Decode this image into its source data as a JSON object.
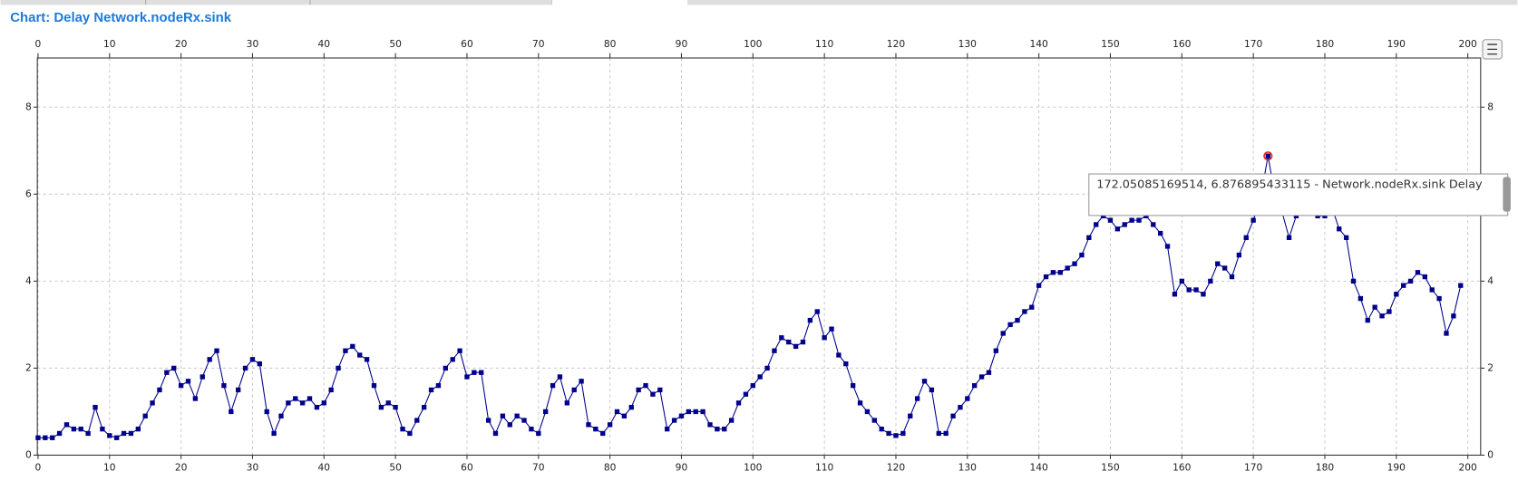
{
  "chart_data": {
    "type": "line",
    "title": "Chart: Delay Network.nodeRx.sink",
    "x": [
      0,
      1,
      2,
      3,
      4,
      5,
      6,
      7,
      8,
      9,
      10,
      11,
      12,
      13,
      14,
      15,
      16,
      17,
      18,
      19,
      20,
      21,
      22,
      23,
      24,
      25,
      26,
      27,
      28,
      29,
      30,
      31,
      32,
      33,
      34,
      35,
      36,
      37,
      38,
      39,
      40,
      41,
      42,
      43,
      44,
      45,
      46,
      47,
      48,
      49,
      50,
      51,
      52,
      53,
      54,
      55,
      56,
      57,
      58,
      59,
      60,
      61,
      62,
      63,
      64,
      65,
      66,
      67,
      68,
      69,
      70,
      71,
      72,
      73,
      74,
      75,
      76,
      77,
      78,
      79,
      80,
      81,
      82,
      83,
      84,
      85,
      86,
      87,
      88,
      89,
      90,
      91,
      92,
      93,
      94,
      95,
      96,
      97,
      98,
      99,
      100,
      101,
      102,
      103,
      104,
      105,
      106,
      107,
      108,
      109,
      110,
      111,
      112,
      113,
      114,
      115,
      116,
      117,
      118,
      119,
      120,
      121,
      122,
      123,
      124,
      125,
      126,
      127,
      128,
      129,
      130,
      131,
      132,
      133,
      134,
      135,
      136,
      137,
      138,
      139,
      140,
      141,
      142,
      143,
      144,
      145,
      146,
      147,
      148,
      149,
      150,
      151,
      152,
      153,
      154,
      155,
      156,
      157,
      158,
      159,
      160,
      161,
      162,
      163,
      164,
      165,
      166,
      167,
      168,
      169,
      170,
      171,
      172.05085169514,
      173,
      174,
      175,
      176,
      177,
      178,
      179,
      180,
      181,
      182,
      183,
      184,
      185,
      186,
      187,
      188,
      189,
      190,
      191,
      192,
      193,
      194,
      195,
      196,
      197,
      198,
      199
    ],
    "series": [
      {
        "color": "#00008b",
        "values": [
          0.4,
          0.4,
          0.4,
          0.5,
          0.7,
          0.6,
          0.6,
          0.5,
          1.1,
          0.6,
          0.45,
          0.4,
          0.5,
          0.5,
          0.6,
          0.9,
          1.2,
          1.5,
          1.9,
          2.0,
          1.6,
          1.7,
          1.3,
          1.8,
          2.2,
          2.4,
          1.6,
          1.0,
          1.5,
          2.0,
          2.2,
          2.1,
          1.0,
          0.5,
          0.9,
          1.2,
          1.3,
          1.2,
          1.3,
          1.1,
          1.2,
          1.5,
          2.0,
          2.4,
          2.5,
          2.3,
          2.2,
          1.6,
          1.1,
          1.2,
          1.1,
          0.6,
          0.5,
          0.8,
          1.1,
          1.5,
          1.6,
          2.0,
          2.2,
          2.4,
          1.8,
          1.9,
          1.9,
          0.8,
          0.5,
          0.9,
          0.7,
          0.9,
          0.8,
          0.6,
          0.5,
          1.0,
          1.6,
          1.8,
          1.2,
          1.5,
          1.7,
          0.7,
          0.6,
          0.5,
          0.7,
          1.0,
          0.9,
          1.1,
          1.5,
          1.6,
          1.4,
          1.5,
          0.6,
          0.8,
          0.9,
          1.0,
          1.0,
          1.0,
          0.7,
          0.6,
          0.6,
          0.8,
          1.2,
          1.4,
          1.6,
          1.8,
          2.0,
          2.4,
          2.7,
          2.6,
          2.5,
          2.6,
          3.1,
          3.3,
          2.7,
          2.9,
          2.3,
          2.1,
          1.6,
          1.2,
          1.0,
          0.8,
          0.6,
          0.5,
          0.45,
          0.5,
          0.9,
          1.3,
          1.7,
          1.5,
          0.5,
          0.5,
          0.9,
          1.1,
          1.3,
          1.6,
          1.8,
          1.9,
          2.4,
          2.8,
          3.0,
          3.1,
          3.3,
          3.4,
          3.9,
          4.1,
          4.2,
          4.2,
          4.3,
          4.4,
          4.6,
          5.0,
          5.3,
          5.5,
          5.4,
          5.2,
          5.3,
          5.4,
          5.4,
          5.5,
          5.3,
          5.1,
          4.8,
          3.7,
          4.0,
          3.8,
          3.8,
          3.7,
          4.0,
          4.4,
          4.3,
          4.1,
          4.6,
          5.0,
          5.4,
          5.9,
          6.876895433115,
          6.0,
          5.6,
          5.0,
          5.5,
          5.6,
          5.8,
          5.5,
          5.5,
          5.7,
          5.2,
          5.0,
          4.0,
          3.6,
          3.1,
          3.4,
          3.2,
          3.3,
          3.7,
          3.9,
          4.0,
          4.2,
          4.1,
          3.8,
          3.6,
          2.8,
          3.2,
          3.9
        ]
      }
    ],
    "xlim": [
      -0.1,
      201.8
    ],
    "ylim": [
      0,
      9.13
    ],
    "xticks": [
      0,
      10,
      20,
      30,
      40,
      50,
      60,
      70,
      80,
      90,
      100,
      110,
      120,
      130,
      140,
      150,
      160,
      170,
      180,
      190,
      200
    ],
    "yticks": [
      0,
      2,
      4,
      6,
      8
    ],
    "grid": true,
    "tooltip": "172.05085169514, 6.876895433115 - Network.nodeRx.sink Delay"
  }
}
